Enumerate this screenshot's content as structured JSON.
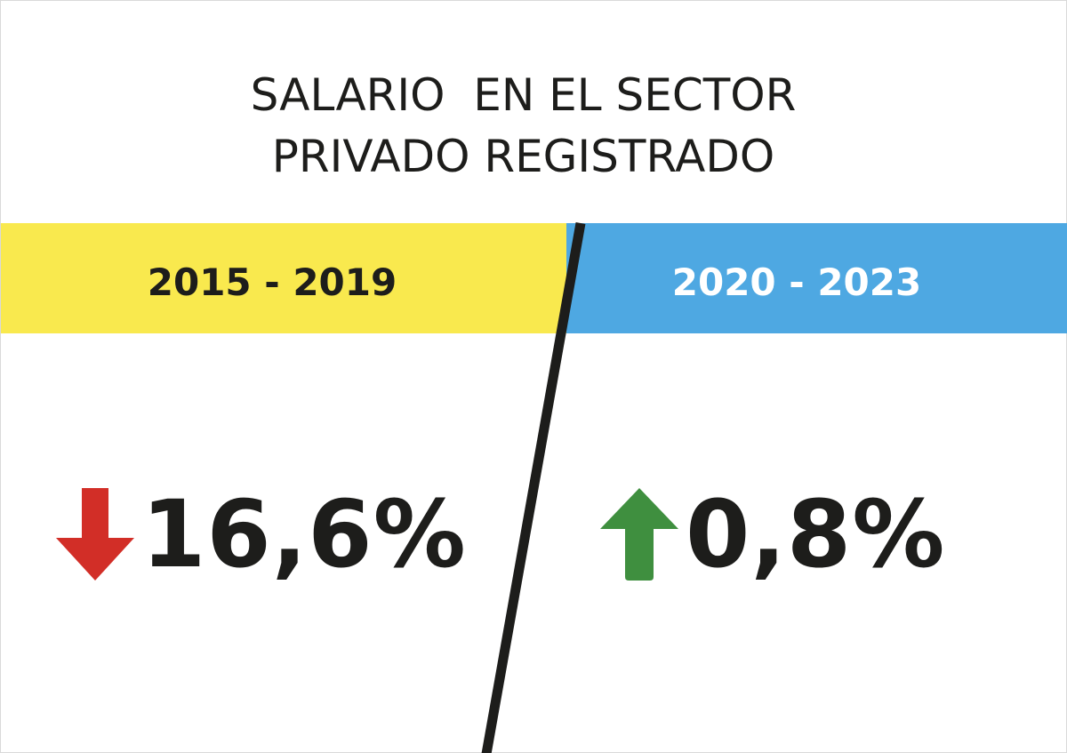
{
  "title": "SALARIO  EN EL SECTOR\nPRIVADO REGISTRADO",
  "periods": [
    {
      "label": "2015 - 2019",
      "band_color": "#f9e94e",
      "text_color": "#1d1d1b"
    },
    {
      "label": "2020 - 2023",
      "band_color": "#4ea8e2",
      "text_color": "#ffffff"
    }
  ],
  "stats": [
    {
      "value": "16,6%",
      "direction": "down",
      "icon": "arrow-down-icon",
      "color": "#d22e27"
    },
    {
      "value": "0,8%",
      "direction": "up",
      "icon": "arrow-up-icon",
      "color": "#3f8f3f"
    }
  ],
  "colors": {
    "divider": "#1d1d1b",
    "text": "#1d1d1b"
  }
}
